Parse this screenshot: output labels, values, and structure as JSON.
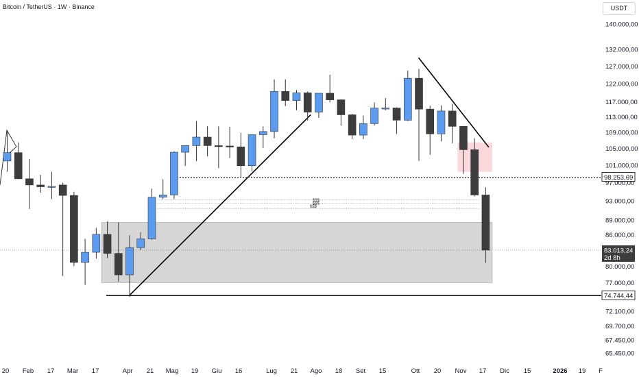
{
  "header": {
    "title": "Bitcoin / TetherUS · 1W · Binance",
    "currency_button": "USDT"
  },
  "colors": {
    "up": "#5b9cf0",
    "down": "#3d3d3d",
    "zone_grey": "#cfcfcf",
    "zone_red": "#fbd4d8",
    "line": "#000000",
    "current_tag": "#3d3d3d"
  },
  "chart_data": {
    "type": "candlestick",
    "x_axis": {
      "type": "date",
      "tick_labels": [
        "20",
        "Feb",
        "17",
        "Mar",
        "17",
        "Apr",
        "21",
        "Mag",
        "19",
        "Giu",
        "16",
        "Lug",
        "21",
        "Ago",
        "18",
        "Set",
        "15",
        "Ott",
        "20",
        "Nov",
        "17",
        "Dic",
        "15",
        "2026",
        "19",
        "F"
      ]
    },
    "y_axis": {
      "scale": "log",
      "tick_labels": [
        "140.000,00",
        "132.000,00",
        "127.000,00",
        "122.000,00",
        "117.000,00",
        "113.000,00",
        "109.000,00",
        "105.000,00",
        "101.000,00",
        "97.000,00",
        "93.000,00",
        "89.000,00",
        "86.000,00",
        "80.000,00",
        "77.000,00",
        "72.100,00",
        "69.700,00",
        "67.450,00",
        "65.450,00"
      ],
      "tick_values": [
        140000,
        132000,
        127000,
        122000,
        117000,
        113000,
        109000,
        105000,
        101000,
        97000,
        93000,
        89000,
        86000,
        80000,
        77000,
        72100,
        69700,
        67450,
        65450
      ]
    },
    "candles": [
      {
        "date": "2025-01-20",
        "open": 102000,
        "high": 109500,
        "low": 99500,
        "close": 104000
      },
      {
        "date": "2025-01-27",
        "open": 104000,
        "high": 106500,
        "low": 97800,
        "close": 97900
      },
      {
        "date": "2025-02-03",
        "open": 97900,
        "high": 102500,
        "low": 91300,
        "close": 96500
      },
      {
        "date": "2025-02-10",
        "open": 96500,
        "high": 98800,
        "low": 94800,
        "close": 96100
      },
      {
        "date": "2025-02-17",
        "open": 96100,
        "high": 99500,
        "low": 93400,
        "close": 96200
      },
      {
        "date": "2025-02-24",
        "open": 96500,
        "high": 97000,
        "low": 78200,
        "close": 94200
      },
      {
        "date": "2025-03-03",
        "open": 94200,
        "high": 95000,
        "low": 80000,
        "close": 80700
      },
      {
        "date": "2025-03-10",
        "open": 80700,
        "high": 85200,
        "low": 76600,
        "close": 82600
      },
      {
        "date": "2025-03-17",
        "open": 82600,
        "high": 87400,
        "low": 81400,
        "close": 86100
      },
      {
        "date": "2025-03-24",
        "open": 86100,
        "high": 88700,
        "low": 81500,
        "close": 82400
      },
      {
        "date": "2025-03-31",
        "open": 82400,
        "high": 88500,
        "low": 77200,
        "close": 78400
      },
      {
        "date": "2025-04-07",
        "open": 78400,
        "high": 85900,
        "low": 74500,
        "close": 83500
      },
      {
        "date": "2025-04-14",
        "open": 83500,
        "high": 86500,
        "low": 83000,
        "close": 85200
      },
      {
        "date": "2025-04-21",
        "open": 85200,
        "high": 95700,
        "low": 85000,
        "close": 93800
      },
      {
        "date": "2025-04-28",
        "open": 93800,
        "high": 97800,
        "low": 93400,
        "close": 94300
      },
      {
        "date": "2025-05-05",
        "open": 94300,
        "high": 104300,
        "low": 93400,
        "close": 104100
      },
      {
        "date": "2025-05-12",
        "open": 104100,
        "high": 105700,
        "low": 100800,
        "close": 105700
      },
      {
        "date": "2025-05-19",
        "open": 105700,
        "high": 111900,
        "low": 102000,
        "close": 107800
      },
      {
        "date": "2025-05-26",
        "open": 107800,
        "high": 110500,
        "low": 103100,
        "close": 105700
      },
      {
        "date": "2025-06-02",
        "open": 105700,
        "high": 110500,
        "low": 100300,
        "close": 105600
      },
      {
        "date": "2025-06-09",
        "open": 105600,
        "high": 110400,
        "low": 102700,
        "close": 105500
      },
      {
        "date": "2025-06-16",
        "open": 105400,
        "high": 108900,
        "low": 98200,
        "close": 100900
      },
      {
        "date": "2025-06-23",
        "open": 100900,
        "high": 108500,
        "low": 99600,
        "close": 108400
      },
      {
        "date": "2025-06-30",
        "open": 108400,
        "high": 110500,
        "low": 105100,
        "close": 109200
      },
      {
        "date": "2025-07-07",
        "open": 109200,
        "high": 123200,
        "low": 107500,
        "close": 119800
      },
      {
        "date": "2025-07-14",
        "open": 119800,
        "high": 123200,
        "low": 115800,
        "close": 117300
      },
      {
        "date": "2025-07-21",
        "open": 117300,
        "high": 120200,
        "low": 114700,
        "close": 119400
      },
      {
        "date": "2025-07-28",
        "open": 119400,
        "high": 119800,
        "low": 112000,
        "close": 114200
      },
      {
        "date": "2025-08-04",
        "open": 114200,
        "high": 119300,
        "low": 112700,
        "close": 119300
      },
      {
        "date": "2025-08-11",
        "open": 119300,
        "high": 124500,
        "low": 116800,
        "close": 117500
      },
      {
        "date": "2025-08-18",
        "open": 117500,
        "high": 117600,
        "low": 110700,
        "close": 113500
      },
      {
        "date": "2025-08-25",
        "open": 113500,
        "high": 113700,
        "low": 107300,
        "close": 108300
      },
      {
        "date": "2025-09-01",
        "open": 108300,
        "high": 113300,
        "low": 107300,
        "close": 111200
      },
      {
        "date": "2025-09-08",
        "open": 111200,
        "high": 116800,
        "low": 110700,
        "close": 115300
      },
      {
        "date": "2025-09-15",
        "open": 115300,
        "high": 118000,
        "low": 114700,
        "close": 115300
      },
      {
        "date": "2025-09-22",
        "open": 115300,
        "high": 115500,
        "low": 108600,
        "close": 112100
      },
      {
        "date": "2025-09-29",
        "open": 112100,
        "high": 125700,
        "low": 111900,
        "close": 123500
      },
      {
        "date": "2025-10-06",
        "open": 123500,
        "high": 126200,
        "low": 102000,
        "close": 115000
      },
      {
        "date": "2025-10-13",
        "open": 115000,
        "high": 115900,
        "low": 103500,
        "close": 108600
      },
      {
        "date": "2025-10-20",
        "open": 108600,
        "high": 116000,
        "low": 106700,
        "close": 114500
      },
      {
        "date": "2025-10-27",
        "open": 114500,
        "high": 116400,
        "low": 106300,
        "close": 110500
      },
      {
        "date": "2025-11-03",
        "open": 110500,
        "high": 110600,
        "low": 99000,
        "close": 104700
      },
      {
        "date": "2025-11-10",
        "open": 104700,
        "high": 107500,
        "low": 94000,
        "close": 94300
      },
      {
        "date": "2025-11-17",
        "open": 94300,
        "high": 96000,
        "low": 80600,
        "close": 83013.24
      }
    ],
    "levels": [
      {
        "label": "98.253,69",
        "value": 98253.69
      },
      {
        "label": "74.744,44",
        "value": 74744.44
      }
    ],
    "current_price": {
      "label": "83.013,24",
      "countdown": "2d 8h",
      "value": 83013.24
    },
    "liquidity_marks": [
      "$$$",
      "$$$",
      "$$$"
    ],
    "zones": [
      {
        "kind": "demand",
        "from_date": "2025-03-24",
        "to_date": "2025-11-17",
        "low": 77000,
        "high": 88500
      },
      {
        "kind": "supply",
        "from_date": "2025-11-03",
        "to_date": "2025-11-17",
        "low": 99500,
        "high": 106500
      }
    ],
    "trendlines": [
      {
        "from": {
          "date": "2025-04-07",
          "value": 74744
        },
        "to": {
          "date": "2025-07-28",
          "value": 113500
        }
      },
      {
        "from": {
          "date": "2025-10-06",
          "value": 129500
        },
        "to": {
          "date": "2025-11-17",
          "value": 105300
        }
      }
    ],
    "grid": false,
    "legend": "none"
  }
}
